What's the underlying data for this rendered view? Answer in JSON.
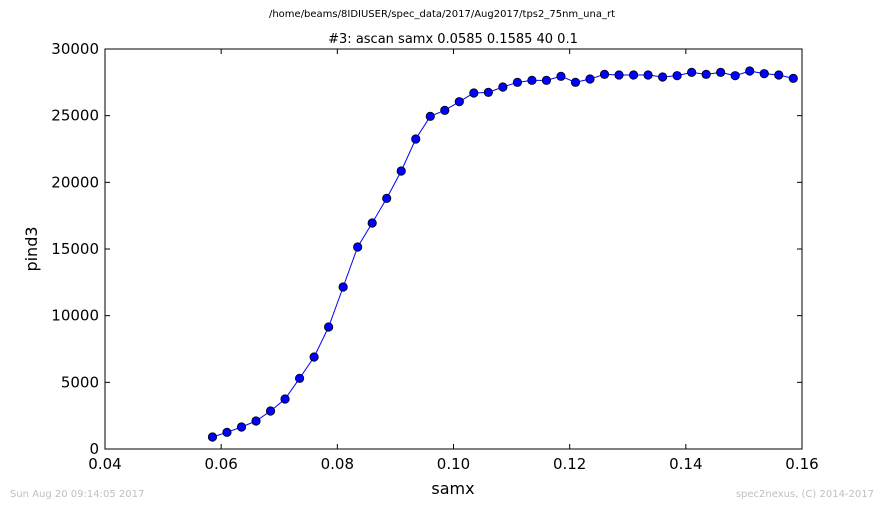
{
  "figure": {
    "suptitle": "/home/beams/8IDIUSER/spec_data/2017/Aug2017/tps2_75nm_una_rt",
    "timestamp": "Sun Aug 20 09:14:05 2017",
    "credit": "spec2nexus, (C) 2014-2017"
  },
  "chart_data": {
    "type": "line",
    "title": "#3: ascan  samx 0.0585 0.1585  40 0.1",
    "xlabel": "samx",
    "ylabel": "pind3",
    "xlim": [
      0.04,
      0.16
    ],
    "ylim": [
      0,
      30000
    ],
    "xticks": [
      "0.04",
      "0.06",
      "0.08",
      "0.10",
      "0.12",
      "0.14",
      "0.16"
    ],
    "yticks": [
      "0",
      "5000",
      "10000",
      "15000",
      "20000",
      "25000",
      "30000"
    ],
    "grid": false,
    "series": [
      {
        "color": "#0000ff",
        "marker": "circle",
        "x": [
          0.0585,
          0.061,
          0.0635,
          0.066,
          0.0685,
          0.071,
          0.0735,
          0.076,
          0.0785,
          0.081,
          0.0835,
          0.086,
          0.0885,
          0.091,
          0.0935,
          0.096,
          0.0985,
          0.101,
          0.1035,
          0.106,
          0.1085,
          0.111,
          0.1135,
          0.116,
          0.1185,
          0.121,
          0.1235,
          0.126,
          0.1285,
          0.131,
          0.1335,
          0.136,
          0.1385,
          0.141,
          0.1435,
          0.146,
          0.1485,
          0.151,
          0.1535,
          0.156,
          0.1585
        ],
        "y": [
          900,
          1250,
          1650,
          2100,
          2850,
          3750,
          5300,
          6900,
          9150,
          12150,
          15150,
          16950,
          18800,
          20850,
          23250,
          24950,
          25400,
          26050,
          26700,
          26750,
          27150,
          27500,
          27650,
          27650,
          27950,
          27500,
          27750,
          28100,
          28050,
          28050,
          28050,
          27900,
          28000,
          28250,
          28100,
          28250,
          28000,
          28350,
          28150,
          28050,
          27800
        ]
      }
    ]
  }
}
